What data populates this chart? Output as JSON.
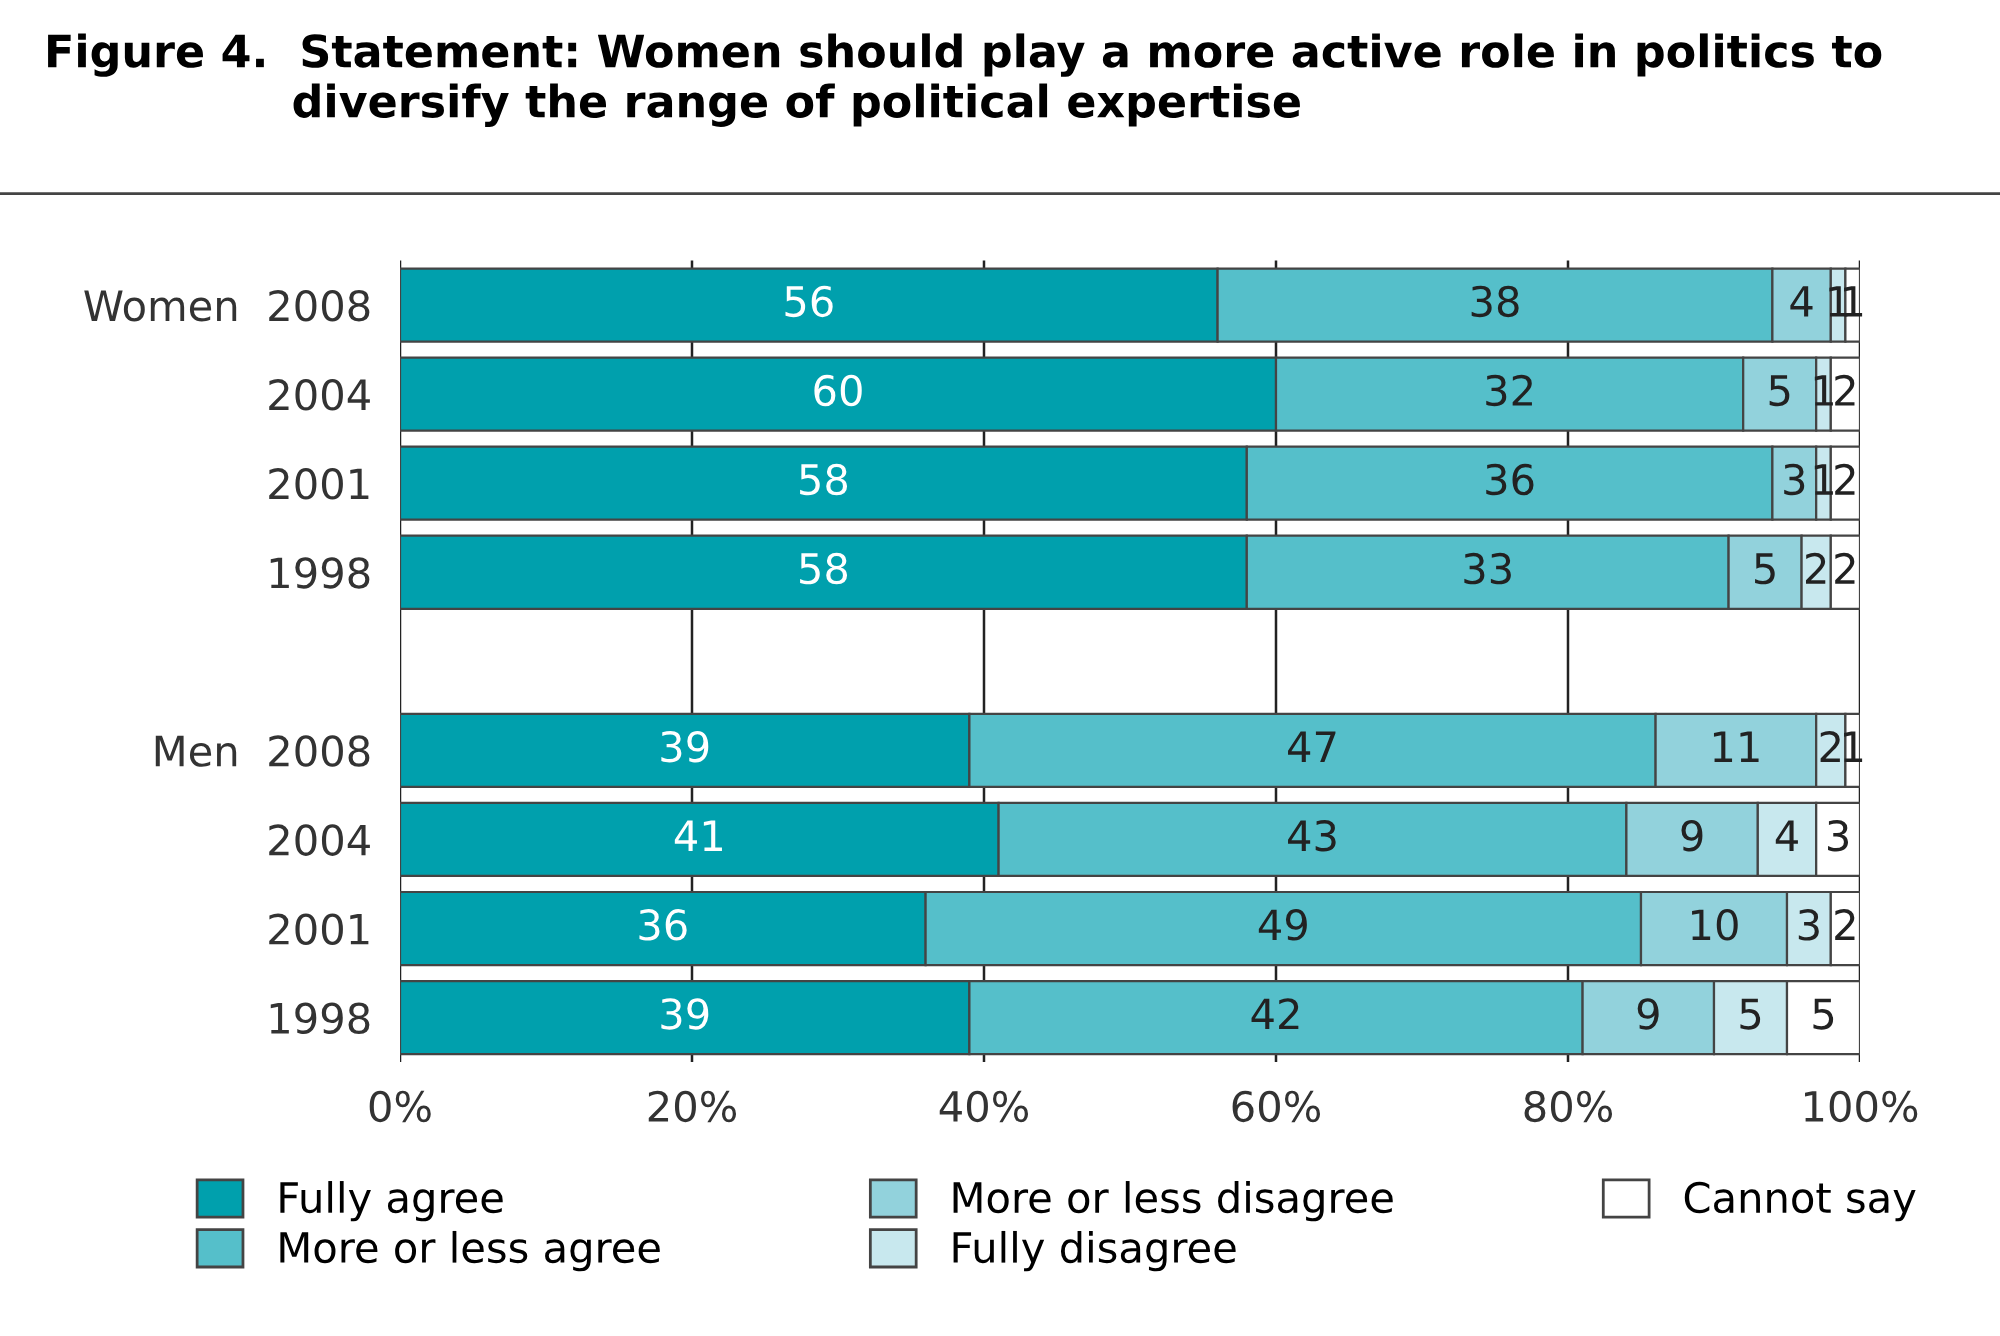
{
  "chart_data": {
    "type": "bar",
    "orientation": "horizontal",
    "stacked": true,
    "title": "Figure 4.  Statement: Women should play a more active role in politics to\n                diversify the range of political expertise",
    "categories": [
      "Women  2008",
      "2004",
      "2001",
      "1998",
      null,
      "Men  2008",
      "2004",
      "2001",
      "1998"
    ],
    "series": [
      {
        "name": "Fully agree",
        "color": "#00a0ad",
        "values": [
          56,
          60,
          58,
          58,
          null,
          39,
          41,
          36,
          39
        ]
      },
      {
        "name": "More or less agree",
        "color": "#55bfca",
        "values": [
          38,
          32,
          36,
          33,
          null,
          47,
          43,
          49,
          42
        ]
      },
      {
        "name": "More or less disagree",
        "color": "#92d2dc",
        "values": [
          4,
          5,
          3,
          5,
          null,
          11,
          9,
          10,
          9
        ]
      },
      {
        "name": "Fully disagree",
        "color": "#c8e8ee",
        "values": [
          1,
          1,
          1,
          2,
          null,
          2,
          4,
          3,
          5
        ]
      },
      {
        "name": "Cannot say",
        "color": "#ffffff",
        "values": [
          1,
          2,
          2,
          2,
          null,
          1,
          3,
          2,
          5
        ]
      }
    ],
    "xlim": [
      0,
      100
    ],
    "xticks": [
      {
        "value": 0,
        "label": "0%"
      },
      {
        "value": 20,
        "label": "20%"
      },
      {
        "value": 40,
        "label": "40%"
      },
      {
        "value": 60,
        "label": "60%"
      },
      {
        "value": 80,
        "label": "80%"
      },
      {
        "value": 100,
        "label": "100%"
      }
    ],
    "grid": "x",
    "legend": "bottom",
    "data_labels": true
  }
}
